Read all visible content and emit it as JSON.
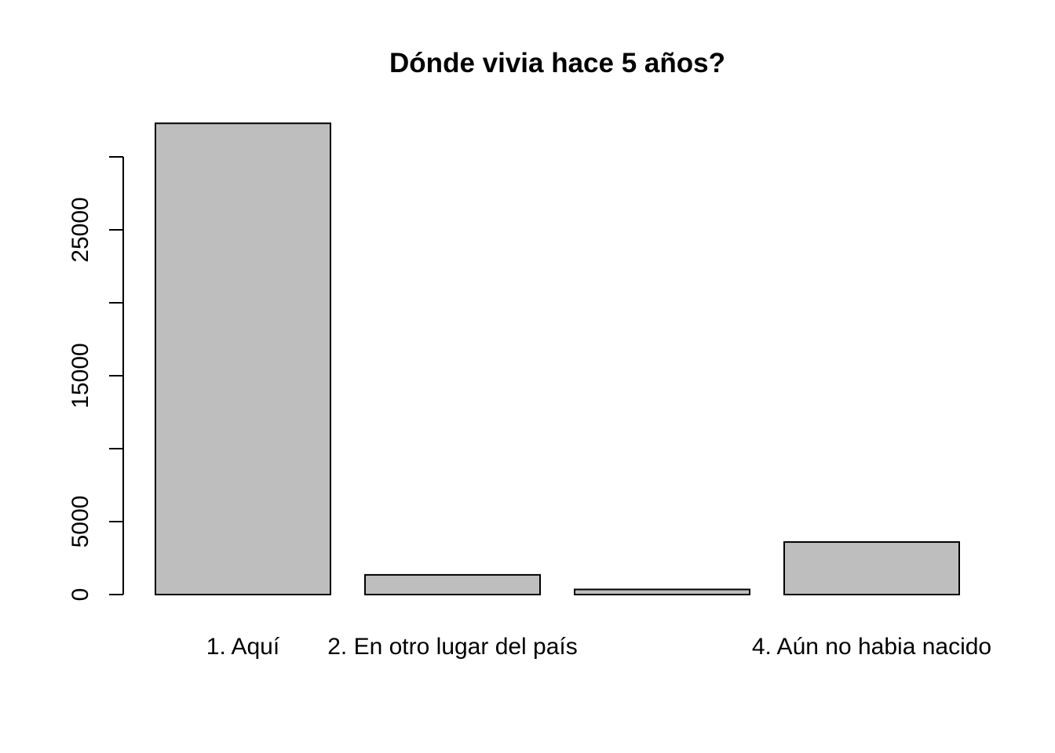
{
  "chart_data": {
    "type": "bar",
    "title": "Dónde vivia hace 5 años?",
    "xlabel": "",
    "ylabel": "",
    "categories": [
      "1. Aquí",
      "2. En otro lugar del país",
      "",
      "4. Aún no habia nacido"
    ],
    "values": [
      32300,
      1350,
      350,
      3600
    ],
    "ylim": [
      0,
      32300
    ],
    "yticks": [
      0,
      5000,
      10000,
      15000,
      20000,
      25000,
      30000
    ],
    "ytick_labels": [
      "0",
      "5000",
      "",
      "15000",
      "",
      "25000",
      ""
    ],
    "bar_color": "#bebebe",
    "grid": false,
    "legend": "none"
  }
}
